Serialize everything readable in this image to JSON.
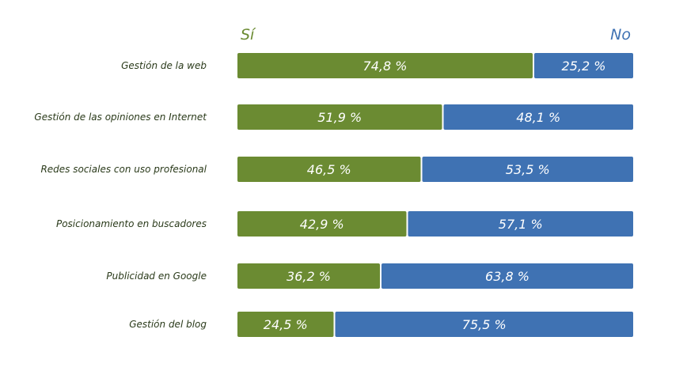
{
  "chart_data": {
    "type": "bar",
    "orientation": "horizontal",
    "stacked": true,
    "normalized_percent": true,
    "series": [
      {
        "name": "Sí",
        "color": "#6b8b32",
        "values": [
          74.8,
          51.9,
          46.5,
          42.9,
          36.2,
          24.5
        ]
      },
      {
        "name": "No",
        "color": "#3f72b3",
        "values": [
          25.2,
          48.1,
          53.5,
          57.1,
          63.8,
          75.5
        ]
      }
    ],
    "categories": [
      "Gestión de la web",
      "Gestión de las opiniones en Internet",
      "Redes sociales con uso profesional",
      "Posicionamiento en buscadores",
      "Publicidad en Google",
      "Gestión del blog"
    ],
    "value_labels": [
      [
        "74,8 %",
        "25,2 %"
      ],
      [
        "51,9 %",
        "48,1 %"
      ],
      [
        "46,5 %",
        "53,5 %"
      ],
      [
        "42,9 %",
        "57,1 %"
      ],
      [
        "36,2 %",
        "63,8 %"
      ],
      [
        "24,5 %",
        "75,5 %"
      ]
    ],
    "xlim": [
      0,
      100
    ],
    "title": "",
    "xlabel": "",
    "ylabel": "",
    "grid": false
  }
}
